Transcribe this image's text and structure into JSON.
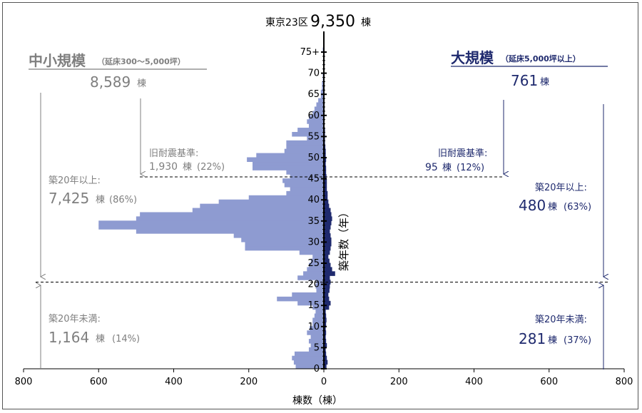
{
  "chart_data": {
    "type": "bar",
    "orientation": "horizontal-population-pyramid",
    "title_prefix": "東京23区",
    "title_value": "9,350",
    "title_unit": "棟",
    "xlabel": "棟数（棟）",
    "ylabel": "築年数（年）",
    "xlim": [
      -800,
      800
    ],
    "ylim": [
      0,
      75
    ],
    "x_ticks": [
      "800",
      "600",
      "400",
      "200",
      "0",
      "200",
      "400",
      "600",
      "800"
    ],
    "y_ticks": [
      "0",
      "5",
      "10",
      "15",
      "20",
      "25",
      "30",
      "35",
      "40",
      "45",
      "50",
      "55",
      "60",
      "65",
      "70",
      "75+"
    ],
    "y": [
      0,
      1,
      2,
      3,
      4,
      5,
      6,
      7,
      8,
      9,
      10,
      11,
      12,
      13,
      14,
      15,
      16,
      17,
      18,
      19,
      20,
      21,
      22,
      23,
      24,
      25,
      26,
      27,
      28,
      29,
      30,
      31,
      32,
      33,
      34,
      35,
      36,
      37,
      38,
      39,
      40,
      41,
      42,
      43,
      44,
      45,
      46,
      47,
      48,
      49,
      50,
      51,
      52,
      53,
      54,
      55,
      56,
      57,
      58,
      59,
      60,
      61,
      62,
      63,
      64,
      65,
      66,
      67,
      68,
      69,
      70,
      71,
      72,
      73,
      74,
      75
    ],
    "colors": {
      "small": "#8e9bd1",
      "large": "#1f2a6e",
      "text_small": "#7f7f7f",
      "text_large": "#1f2a6e"
    },
    "series": [
      {
        "name": "中小規模",
        "values": [
          75,
          80,
          85,
          78,
          40,
          35,
          40,
          35,
          45,
          38,
          30,
          30,
          25,
          22,
          30,
          70,
          125,
          85,
          20,
          22,
          20,
          70,
          55,
          45,
          40,
          35,
          30,
          65,
          210,
          210,
          220,
          240,
          500,
          600,
          600,
          500,
          490,
          350,
          330,
          280,
          200,
          100,
          90,
          105,
          110,
          90,
          100,
          190,
          190,
          205,
          180,
          105,
          100,
          100,
          45,
          85,
          70,
          40,
          45,
          40,
          30,
          25,
          20,
          15,
          8,
          8,
          5,
          5,
          3,
          3,
          2,
          2,
          2,
          2,
          2,
          3
        ],
        "label_title": "中小規模",
        "label_subtitle": "（延床300～5,000坪）",
        "total": "8,589",
        "total_unit": "棟",
        "old_quake_label": "旧耐震基準:",
        "old_quake_value": "1,930",
        "old_quake_unit": "棟",
        "old_quake_pct": "(22%)",
        "over20_label": "築20年以上:",
        "over20_value": "7,425",
        "over20_unit": "棟",
        "over20_pct": "(86%)",
        "under20_label": "築20年未満:",
        "under20_value": "1,164",
        "under20_unit": "棟",
        "under20_pct": "(14%)"
      },
      {
        "name": "大規模",
        "values": [
          7,
          10,
          8,
          6,
          5,
          8,
          6,
          5,
          6,
          5,
          6,
          7,
          6,
          5,
          14,
          18,
          14,
          12,
          15,
          16,
          18,
          16,
          30,
          22,
          18,
          15,
          12,
          16,
          18,
          20,
          20,
          18,
          16,
          18,
          20,
          22,
          20,
          18,
          14,
          12,
          10,
          10,
          8,
          8,
          8,
          7,
          6,
          6,
          5,
          6,
          5,
          5,
          4,
          3,
          3,
          3,
          3,
          2,
          2,
          2,
          2,
          2,
          1,
          1,
          1,
          1,
          1,
          1,
          1,
          1,
          1,
          1,
          1,
          1,
          1,
          1
        ],
        "label_title": "大規模",
        "label_subtitle": "（延床5,000坪以上）",
        "total": "761",
        "total_unit": "棟",
        "old_quake_label": "旧耐震基準:",
        "old_quake_value": "95",
        "old_quake_unit": "棟",
        "old_quake_pct": "(12%)",
        "over20_label": "築20年以上:",
        "over20_value": "480",
        "over20_unit": "棟",
        "over20_pct": "(63%)",
        "under20_label": "築20年未満:",
        "under20_value": "281",
        "under20_unit": "棟",
        "under20_pct": "(37%)"
      }
    ],
    "reference_lines": [
      {
        "name": "old-quake-standard",
        "age": 44
      },
      {
        "name": "age-20",
        "age": 20
      }
    ]
  }
}
